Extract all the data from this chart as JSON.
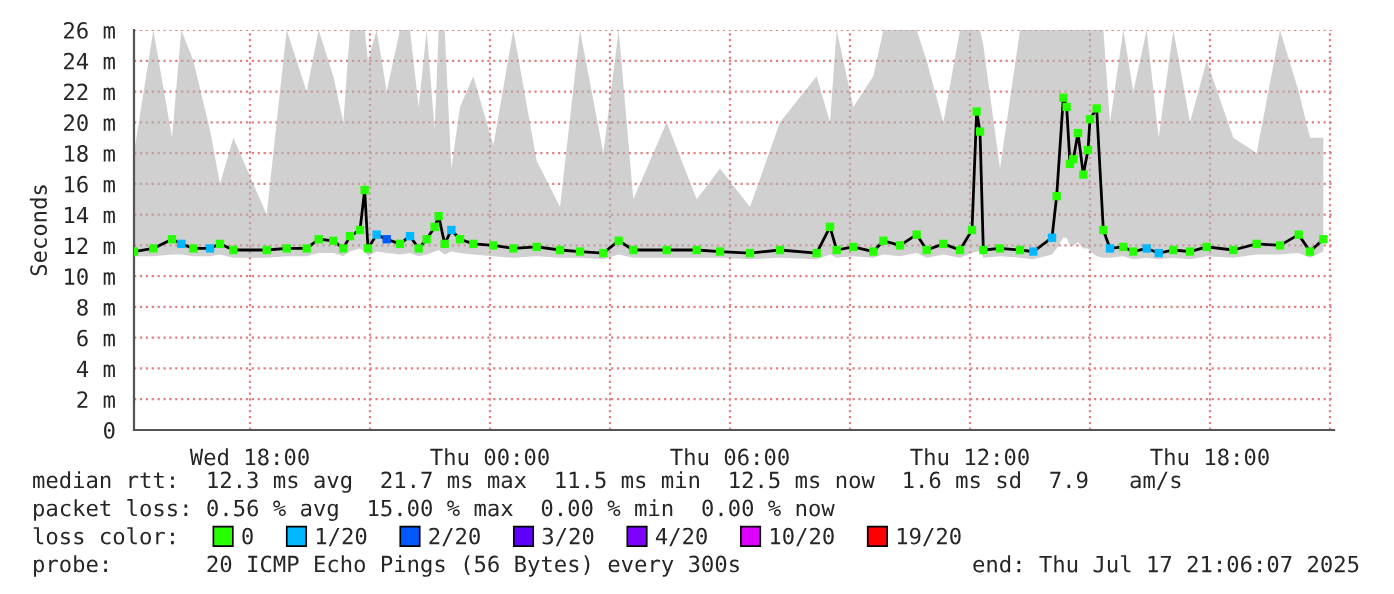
{
  "chart_data": {
    "type": "line",
    "ylabel": "Seconds",
    "legend_title": "loss color:",
    "legend": "bottom",
    "grid": true,
    "marker": "square",
    "line_style": "solid",
    "xlim": [
      "2025-07-16T15:06",
      "2025-07-17T21:06"
    ],
    "ylim": [
      0,
      26
    ],
    "xticks": [
      {
        "value": "2025-07-16T18:00",
        "label": "Wed 18:00"
      },
      {
        "value": "2025-07-16T21:00",
        "label": null
      },
      {
        "value": "2025-07-17T00:00",
        "label": "Thu 00:00"
      },
      {
        "value": "2025-07-17T03:00",
        "label": null
      },
      {
        "value": "2025-07-17T06:00",
        "label": "Thu 06:00"
      },
      {
        "value": "2025-07-17T09:00",
        "label": null
      },
      {
        "value": "2025-07-17T12:00",
        "label": "Thu 12:00"
      },
      {
        "value": "2025-07-17T15:00",
        "label": null
      },
      {
        "value": "2025-07-17T18:00",
        "label": "Thu 18:00"
      },
      {
        "value": "2025-07-17T21:00",
        "label": null
      }
    ],
    "yticks": [
      0,
      {
        "value": 2,
        "label": "2 m"
      },
      {
        "value": 4,
        "label": "4 m"
      },
      {
        "value": 6,
        "label": "6 m"
      },
      {
        "value": 8,
        "label": "8 m"
      },
      {
        "value": 10,
        "label": "10 m"
      },
      {
        "value": 12,
        "label": "12 m"
      },
      {
        "value": 14,
        "label": "14 m"
      },
      {
        "value": 16,
        "label": "16 m"
      },
      {
        "value": 18,
        "label": "18 m"
      },
      {
        "value": 20,
        "label": "20 m"
      },
      {
        "value": 22,
        "label": "22 m"
      },
      {
        "value": 24,
        "label": "24 m"
      },
      {
        "value": 26,
        "label": "26 m"
      }
    ],
    "annotations": [
      "median rtt:  12.3 ms avg  21.7 ms max  11.5 ms min  12.5 ms now  1.6 ms sd  7.9   am/s",
      "packet loss: 0.56 % avg  15.00 % max  0.00 % min  0.00 % now",
      "probe:       20 ICMP Echo Pings (56 Bytes) every 300s",
      "end: Thu Jul 17 21:06:07 2025"
    ],
    "series": [
      {
        "color": "#000000",
        "marker": "none",
        "x": [
          "2025-07-16T15:06",
          "2025-07-16T15:35",
          "2025-07-16T16:03",
          "2025-07-16T16:17",
          "2025-07-16T16:35",
          "2025-07-16T17:00",
          "2025-07-16T17:15",
          "2025-07-16T17:35",
          "2025-07-16T18:25",
          "2025-07-16T18:55",
          "2025-07-16T19:25",
          "2025-07-16T19:43",
          "2025-07-16T20:05",
          "2025-07-16T20:20",
          "2025-07-16T20:30",
          "2025-07-16T20:45",
          "2025-07-16T20:52",
          "2025-07-16T20:57",
          "2025-07-16T21:10",
          "2025-07-16T21:25",
          "2025-07-16T21:45",
          "2025-07-16T22:00",
          "2025-07-16T22:13",
          "2025-07-16T22:25",
          "2025-07-16T22:37",
          "2025-07-16T22:43",
          "2025-07-16T22:52",
          "2025-07-16T23:02",
          "2025-07-16T23:15",
          "2025-07-16T23:35",
          "2025-07-17T00:05",
          "2025-07-17T00:35",
          "2025-07-17T01:10",
          "2025-07-17T01:45",
          "2025-07-17T02:15",
          "2025-07-17T02:50",
          "2025-07-17T03:13",
          "2025-07-17T03:35",
          "2025-07-17T04:25",
          "2025-07-17T05:10",
          "2025-07-17T05:45",
          "2025-07-17T06:30",
          "2025-07-17T07:15",
          "2025-07-17T08:10",
          "2025-07-17T08:30",
          "2025-07-17T08:40",
          "2025-07-17T09:05",
          "2025-07-17T09:35",
          "2025-07-17T09:50",
          "2025-07-17T10:15",
          "2025-07-17T10:40",
          "2025-07-17T10:55",
          "2025-07-17T11:20",
          "2025-07-17T11:45",
          "2025-07-17T12:03",
          "2025-07-17T12:10",
          "2025-07-17T12:15",
          "2025-07-17T12:20",
          "2025-07-17T12:45",
          "2025-07-17T13:15",
          "2025-07-17T13:35",
          "2025-07-17T14:03",
          "2025-07-17T14:10",
          "2025-07-17T14:20",
          "2025-07-17T14:25",
          "2025-07-17T14:30",
          "2025-07-17T14:35",
          "2025-07-17T14:42",
          "2025-07-17T14:50",
          "2025-07-17T14:57",
          "2025-07-17T15:00",
          "2025-07-17T15:10",
          "2025-07-17T15:20",
          "2025-07-17T15:30",
          "2025-07-17T15:50",
          "2025-07-17T16:05",
          "2025-07-17T16:25",
          "2025-07-17T16:43",
          "2025-07-17T17:05",
          "2025-07-17T17:30",
          "2025-07-17T17:55",
          "2025-07-17T18:35",
          "2025-07-17T19:10",
          "2025-07-17T19:45",
          "2025-07-17T20:13",
          "2025-07-17T20:30",
          "2025-07-17T20:50"
        ],
        "values": [
          11.6,
          11.8,
          12.4,
          12.1,
          11.8,
          11.8,
          12.1,
          11.7,
          11.7,
          11.8,
          11.8,
          12.4,
          12.3,
          11.8,
          12.6,
          13.0,
          15.6,
          11.8,
          12.7,
          12.4,
          12.1,
          12.6,
          11.8,
          12.4,
          13.2,
          13.9,
          12.1,
          13.0,
          12.4,
          12.1,
          12.0,
          11.8,
          11.9,
          11.7,
          11.6,
          11.5,
          12.3,
          11.7,
          11.7,
          11.7,
          11.6,
          11.5,
          11.7,
          11.5,
          13.2,
          11.7,
          11.9,
          11.6,
          12.3,
          12.0,
          12.7,
          11.7,
          12.1,
          11.7,
          13.0,
          20.7,
          19.4,
          11.7,
          11.8,
          11.7,
          11.6,
          12.5,
          15.2,
          21.6,
          21.0,
          17.3,
          17.6,
          19.3,
          16.6,
          18.2,
          20.2,
          20.9,
          13.0,
          11.8,
          11.9,
          11.6,
          11.8,
          11.5,
          11.7,
          11.6,
          11.9,
          11.7,
          12.1,
          12.0,
          12.7,
          11.6,
          12.4
        ],
        "lower": [
          11.3,
          11.3,
          11.4,
          11.4,
          11.3,
          11.3,
          11.4,
          11.2,
          11.2,
          11.3,
          11.3,
          11.5,
          11.5,
          11.3,
          11.6,
          11.8,
          11.6,
          11.3,
          11.6,
          11.5,
          11.4,
          11.5,
          11.3,
          11.4,
          11.6,
          11.7,
          11.4,
          11.6,
          11.5,
          11.4,
          11.3,
          11.2,
          11.3,
          11.2,
          11.2,
          11.1,
          11.4,
          11.2,
          11.2,
          11.2,
          11.2,
          11.1,
          11.2,
          11.1,
          11.4,
          11.2,
          11.3,
          11.2,
          11.4,
          11.3,
          11.5,
          11.2,
          11.4,
          11.2,
          11.5,
          11.6,
          11.6,
          11.2,
          11.3,
          11.2,
          11.1,
          11.4,
          11.8,
          12.5,
          12.5,
          12.0,
          12.0,
          12.2,
          11.8,
          11.8,
          11.6,
          11.3,
          11.2,
          11.2,
          11.3,
          11.1,
          11.2,
          11.1,
          11.2,
          11.1,
          11.3,
          11.2,
          11.4,
          11.4,
          11.5,
          11.2,
          11.6
        ],
        "upper": [
          18.0,
          26.0,
          19.0,
          26.0,
          24.0,
          19.5,
          16.0,
          19.0,
          14.0,
          26.0,
          22.0,
          26.0,
          23.0,
          20.0,
          26.0,
          26.0,
          26.0,
          24.0,
          26.0,
          22.0,
          26.0,
          26.0,
          21.0,
          26.0,
          19.5,
          26.0,
          26.0,
          17.0,
          21.0,
          23.0,
          18.5,
          26.0,
          17.5,
          14.5,
          26.0,
          18.0,
          26.0,
          15.0,
          20.0,
          15.0,
          17.0,
          14.5,
          20.0,
          23.0,
          20.0,
          26.0,
          21.0,
          23.0,
          26.0,
          26.0,
          26.0,
          24.0,
          20.0,
          26.0,
          26.0,
          26.0,
          26.0,
          25.0,
          17.0,
          26.0,
          26.0,
          26.0,
          26.0,
          26.0,
          26.0,
          26.0,
          26.0,
          26.0,
          26.0,
          26.0,
          26.0,
          26.0,
          26.0,
          20.0,
          26.0,
          22.0,
          26.0,
          19.0,
          26.0,
          20.0,
          24.0,
          19.0,
          18.0,
          26.0,
          22.0,
          19.0,
          19.0
        ]
      },
      {
        "type": "scatter",
        "name": "0",
        "color": "#26ff00",
        "x": [
          "2025-07-16T15:06",
          "2025-07-16T15:35",
          "2025-07-16T16:03",
          "2025-07-16T16:35",
          "2025-07-16T17:15",
          "2025-07-16T17:35",
          "2025-07-16T18:25",
          "2025-07-16T18:55",
          "2025-07-16T19:25",
          "2025-07-16T19:43",
          "2025-07-16T20:05",
          "2025-07-16T20:20",
          "2025-07-16T20:30",
          "2025-07-16T20:45",
          "2025-07-16T20:52",
          "2025-07-16T20:57",
          "2025-07-16T21:45",
          "2025-07-16T22:13",
          "2025-07-16T22:25",
          "2025-07-16T22:37",
          "2025-07-16T22:43",
          "2025-07-16T22:52",
          "2025-07-16T23:15",
          "2025-07-16T23:35",
          "2025-07-17T00:05",
          "2025-07-17T00:35",
          "2025-07-17T01:10",
          "2025-07-17T01:45",
          "2025-07-17T02:15",
          "2025-07-17T02:50",
          "2025-07-17T03:13",
          "2025-07-17T03:35",
          "2025-07-17T04:25",
          "2025-07-17T05:10",
          "2025-07-17T05:45",
          "2025-07-17T06:30",
          "2025-07-17T07:15",
          "2025-07-17T08:10",
          "2025-07-17T08:30",
          "2025-07-17T08:40",
          "2025-07-17T09:05",
          "2025-07-17T09:35",
          "2025-07-17T09:50",
          "2025-07-17T10:15",
          "2025-07-17T10:40",
          "2025-07-17T10:55",
          "2025-07-17T11:20",
          "2025-07-17T11:45",
          "2025-07-17T12:03",
          "2025-07-17T12:10",
          "2025-07-17T12:15",
          "2025-07-17T12:20",
          "2025-07-17T12:45",
          "2025-07-17T13:15",
          "2025-07-17T14:10",
          "2025-07-17T14:20",
          "2025-07-17T14:25",
          "2025-07-17T14:30",
          "2025-07-17T14:35",
          "2025-07-17T14:42",
          "2025-07-17T14:50",
          "2025-07-17T14:57",
          "2025-07-17T15:00",
          "2025-07-17T15:10",
          "2025-07-17T15:20",
          "2025-07-17T15:50",
          "2025-07-17T16:05",
          "2025-07-17T17:05",
          "2025-07-17T17:30",
          "2025-07-17T17:55",
          "2025-07-17T18:35",
          "2025-07-17T19:10",
          "2025-07-17T19:45",
          "2025-07-17T20:13",
          "2025-07-17T20:30",
          "2025-07-17T20:50"
        ],
        "values": [
          11.6,
          11.8,
          12.4,
          11.8,
          12.1,
          11.7,
          11.7,
          11.8,
          11.8,
          12.4,
          12.3,
          11.8,
          12.6,
          13.0,
          15.6,
          11.8,
          12.1,
          11.8,
          12.4,
          13.2,
          13.9,
          12.1,
          12.4,
          12.1,
          12.0,
          11.8,
          11.9,
          11.7,
          11.6,
          11.5,
          12.3,
          11.7,
          11.7,
          11.7,
          11.6,
          11.5,
          11.7,
          11.5,
          13.2,
          11.7,
          11.9,
          11.6,
          12.3,
          12.0,
          12.7,
          11.7,
          12.1,
          11.7,
          13.0,
          20.7,
          19.4,
          11.7,
          11.8,
          11.7,
          15.2,
          21.6,
          21.0,
          17.3,
          17.6,
          19.3,
          16.6,
          18.2,
          20.2,
          20.9,
          13.0,
          11.9,
          11.6,
          11.7,
          11.6,
          11.9,
          11.7,
          12.1,
          12.0,
          12.7,
          11.6,
          12.4
        ]
      },
      {
        "type": "scatter",
        "name": "1/20",
        "color": "#00b8ff",
        "x": [
          "2025-07-16T16:17",
          "2025-07-16T17:00",
          "2025-07-16T21:10",
          "2025-07-16T22:00",
          "2025-07-16T23:02",
          "2025-07-17T13:35",
          "2025-07-17T14:03",
          "2025-07-17T15:30",
          "2025-07-17T16:25",
          "2025-07-17T16:43"
        ],
        "values": [
          12.1,
          11.8,
          12.7,
          12.6,
          13.0,
          11.6,
          12.5,
          11.8,
          11.8,
          11.5
        ]
      },
      {
        "type": "scatter",
        "name": "2/20",
        "color": "#0059ff",
        "x": [
          "2025-07-16T21:25"
        ],
        "values": [
          12.4
        ]
      },
      {
        "type": "scatter",
        "name": "3/20",
        "color": "#5e00ff"
      },
      {
        "type": "scatter",
        "name": "4/20",
        "color": "#7e00ff"
      },
      {
        "type": "scatter",
        "name": "10/20",
        "color": "#dd00ff"
      },
      {
        "type": "scatter",
        "name": "19/20",
        "color": "#ff0000"
      }
    ]
  }
}
